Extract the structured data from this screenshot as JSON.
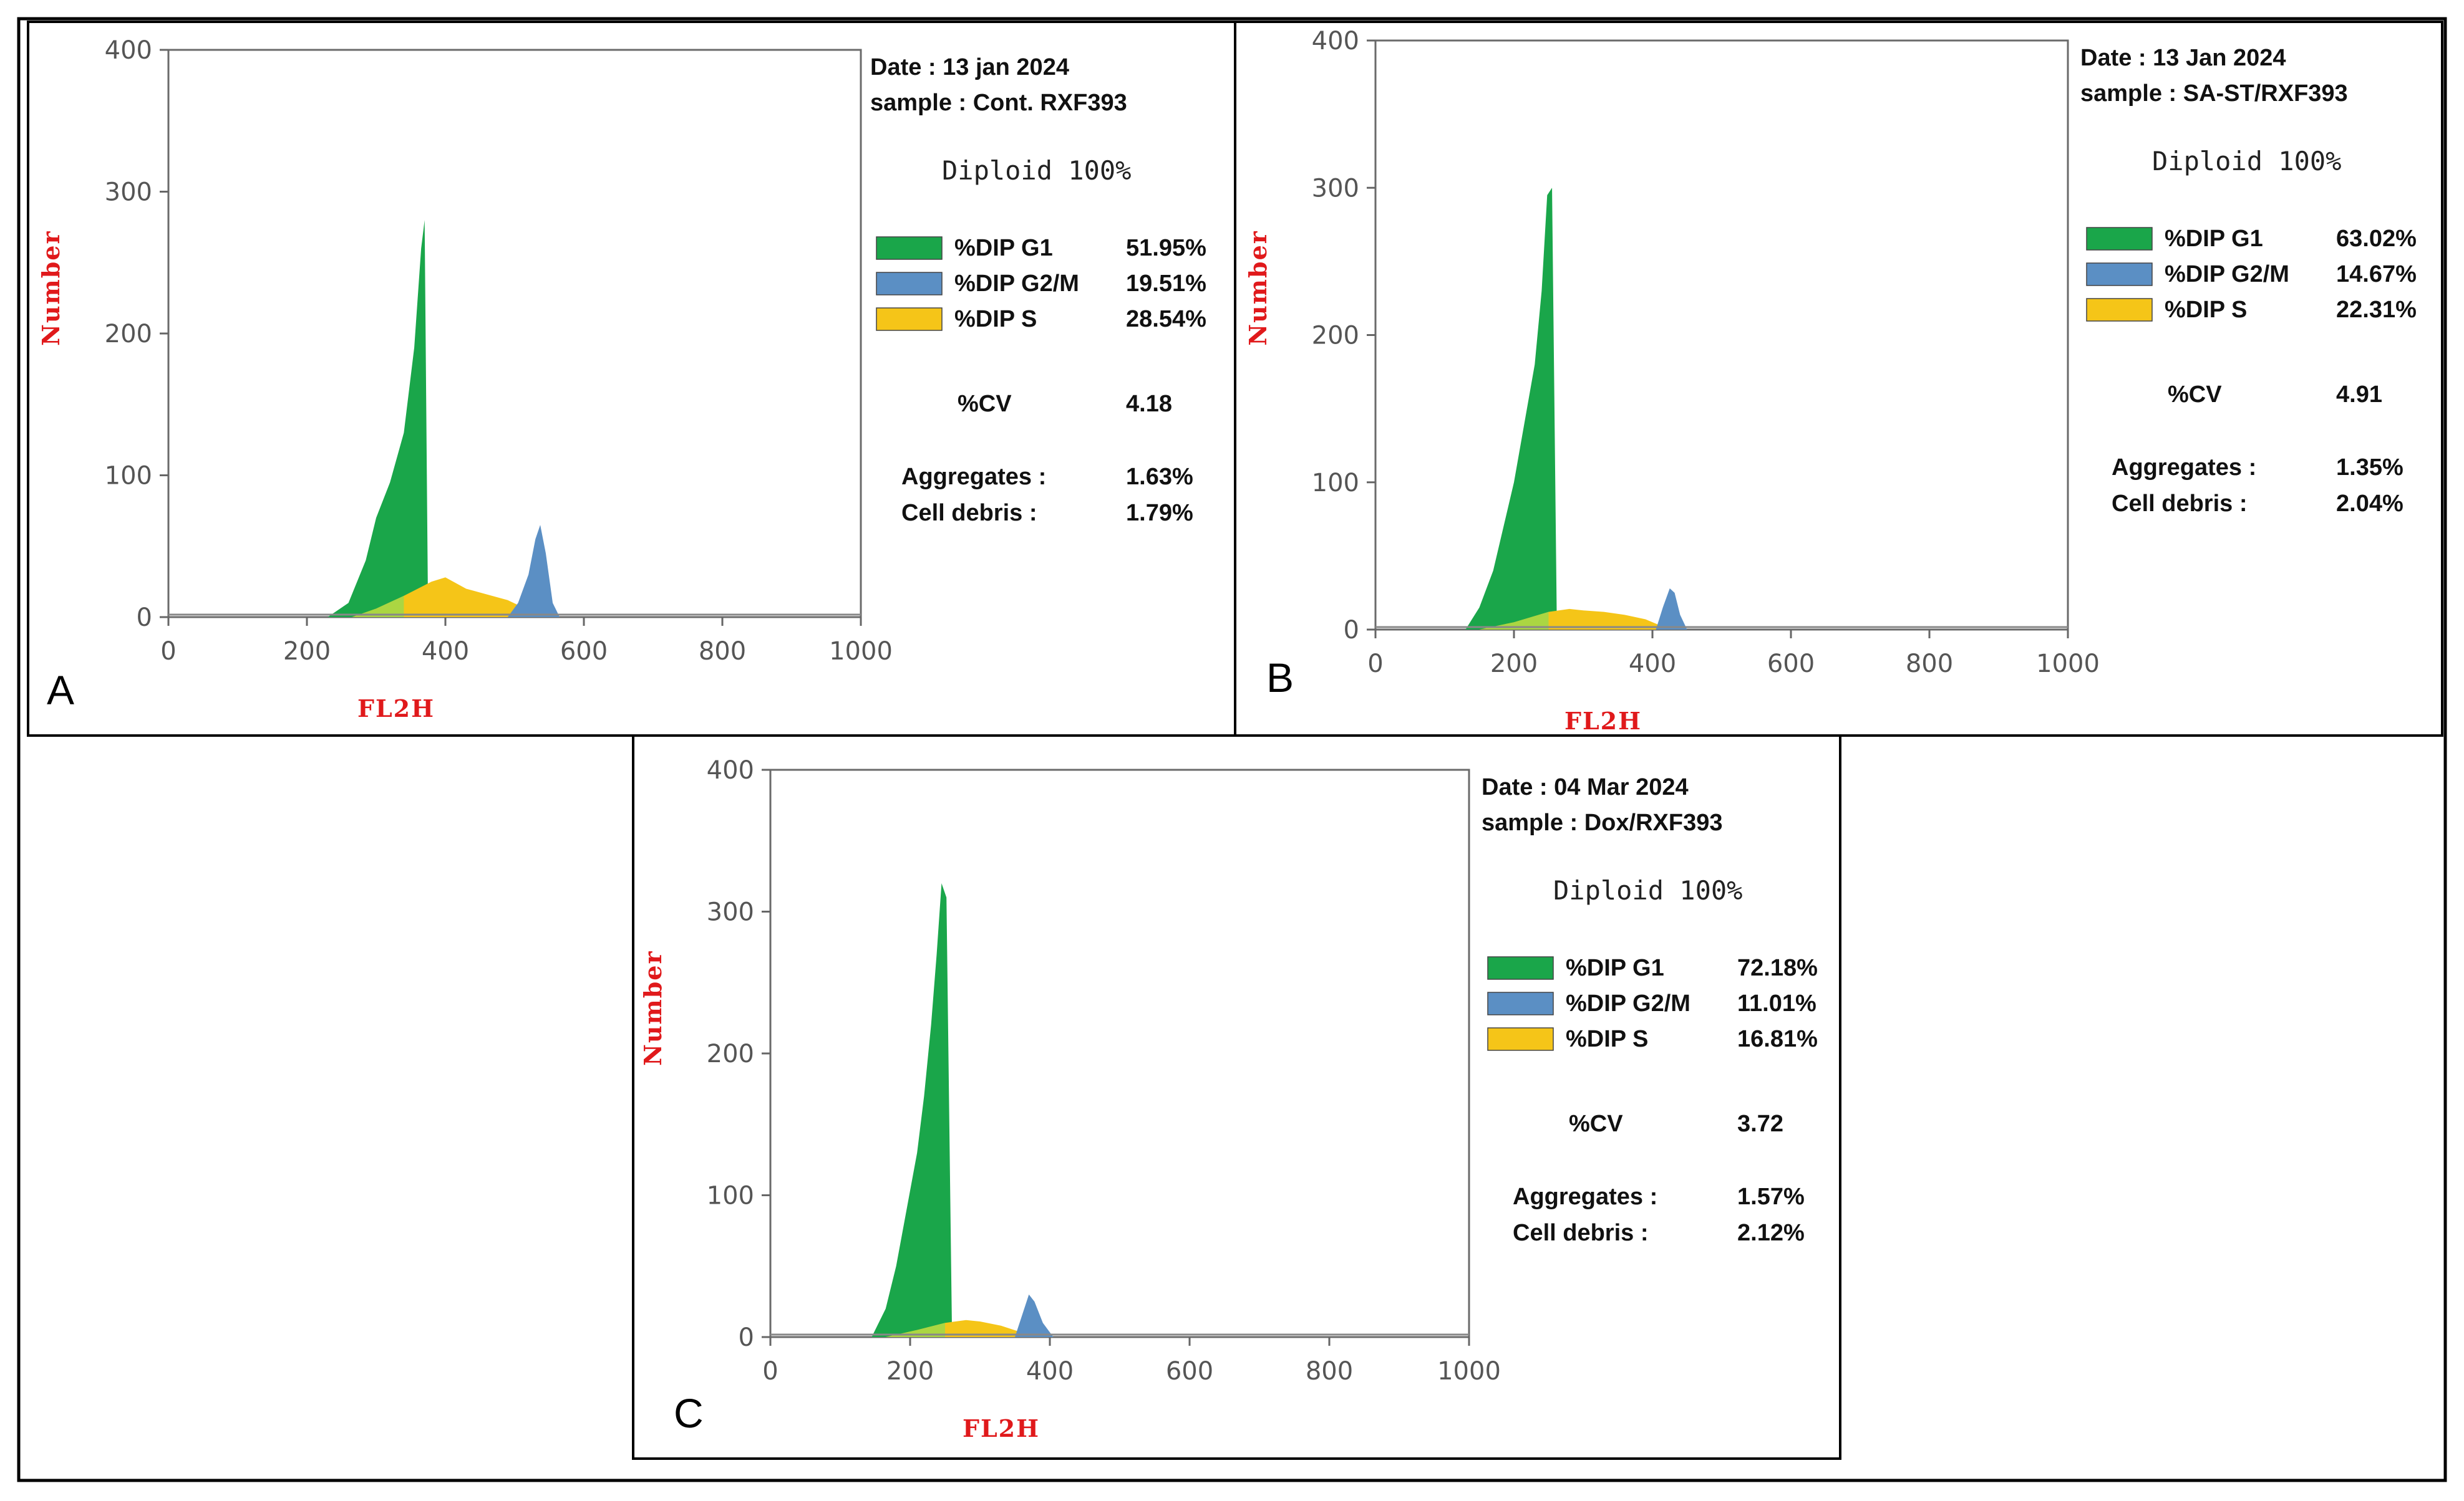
{
  "chart_data": [
    {
      "panel": "A",
      "type": "area",
      "date_label": "Date : 13 jan 2024",
      "sample_label": "sample : Cont. RXF393",
      "diploid_label": "Diploid 100%",
      "xlabel": "FL2H",
      "ylabel": "Number",
      "xlim": [
        0,
        1000
      ],
      "ylim": [
        0,
        400
      ],
      "xticks": [
        "0",
        "200",
        "400",
        "600",
        "800",
        "1000"
      ],
      "yticks": [
        "0",
        "100",
        "200",
        "300",
        "400"
      ],
      "legend": [
        {
          "name": "%DIP G1",
          "value": "51.95%",
          "color": "#1aa64a"
        },
        {
          "name": "%DIP G2/M",
          "value": "19.51%",
          "color": "#5b8fc4"
        },
        {
          "name": "%DIP S",
          "value": "28.54%",
          "color": "#f5c518"
        }
      ],
      "stats": [
        {
          "label": "%CV",
          "value": "4.18"
        },
        {
          "label": "Aggregates :",
          "value": "1.63%"
        },
        {
          "label": "Cell debris :",
          "value": "1.79%"
        }
      ],
      "g1": {
        "x": [
          230,
          260,
          285,
          300,
          320,
          340,
          355,
          365,
          370,
          375
        ],
        "y": [
          0,
          10,
          40,
          70,
          95,
          130,
          190,
          260,
          280,
          0
        ]
      },
      "g2m": {
        "x": [
          490,
          505,
          520,
          530,
          537,
          545,
          555,
          565
        ],
        "y": [
          0,
          10,
          30,
          55,
          65,
          45,
          10,
          0
        ]
      },
      "s": {
        "x": [
          265,
          300,
          340,
          380,
          400,
          430,
          460,
          490,
          520,
          545
        ],
        "y": [
          0,
          6,
          15,
          25,
          28,
          20,
          16,
          12,
          5,
          0
        ]
      }
    },
    {
      "panel": "B",
      "type": "area",
      "date_label": "Date : 13 Jan 2024",
      "sample_label": "sample : SA-ST/RXF393",
      "diploid_label": "Diploid 100%",
      "xlabel": "FL2H",
      "ylabel": "Number",
      "xlim": [
        0,
        1000
      ],
      "ylim": [
        0,
        400
      ],
      "xticks": [
        "0",
        "200",
        "400",
        "600",
        "800",
        "1000"
      ],
      "yticks": [
        "0",
        "100",
        "200",
        "300",
        "400"
      ],
      "legend": [
        {
          "name": "%DIP G1",
          "value": "63.02%",
          "color": "#1aa64a"
        },
        {
          "name": "%DIP G2/M",
          "value": "14.67%",
          "color": "#5b8fc4"
        },
        {
          "name": "%DIP S",
          "value": "22.31%",
          "color": "#f5c518"
        }
      ],
      "stats": [
        {
          "label": "%CV",
          "value": "4.91"
        },
        {
          "label": "Aggregates :",
          "value": "1.35%"
        },
        {
          "label": "Cell debris :",
          "value": "2.04%"
        }
      ],
      "g1": {
        "x": [
          130,
          150,
          170,
          185,
          200,
          215,
          230,
          240,
          248,
          255,
          262
        ],
        "y": [
          0,
          15,
          40,
          70,
          100,
          140,
          180,
          230,
          295,
          300,
          0
        ]
      },
      "g2m": {
        "x": [
          405,
          415,
          425,
          432,
          440,
          450
        ],
        "y": [
          0,
          15,
          28,
          25,
          10,
          0
        ]
      },
      "s": {
        "x": [
          150,
          200,
          250,
          280,
          300,
          330,
          360,
          390,
          410,
          430
        ],
        "y": [
          0,
          5,
          12,
          14,
          13,
          12,
          10,
          7,
          3,
          0
        ]
      }
    },
    {
      "panel": "C",
      "type": "area",
      "date_label": "Date : 04 Mar 2024",
      "sample_label": "sample : Dox/RXF393",
      "diploid_label": "Diploid 100%",
      "xlabel": "FL2H",
      "ylabel": "Number",
      "xlim": [
        0,
        1000
      ],
      "ylim": [
        0,
        400
      ],
      "xticks": [
        "0",
        "200",
        "400",
        "600",
        "800",
        "1000"
      ],
      "yticks": [
        "0",
        "100",
        "200",
        "300",
        "400"
      ],
      "legend": [
        {
          "name": "%DIP G1",
          "value": "72.18%",
          "color": "#1aa64a"
        },
        {
          "name": "%DIP G2/M",
          "value": "11.01%",
          "color": "#5b8fc4"
        },
        {
          "name": "%DIP S",
          "value": "16.81%",
          "color": "#f5c518"
        }
      ],
      "stats": [
        {
          "label": "%CV",
          "value": "3.72"
        },
        {
          "label": "Aggregates :",
          "value": "1.57%"
        },
        {
          "label": "Cell debris :",
          "value": "2.12%"
        }
      ],
      "g1": {
        "x": [
          145,
          165,
          180,
          195,
          210,
          220,
          230,
          238,
          245,
          252,
          260
        ],
        "y": [
          0,
          20,
          50,
          90,
          130,
          170,
          220,
          270,
          320,
          310,
          0
        ]
      },
      "g2m": {
        "x": [
          350,
          360,
          370,
          378,
          390,
          405
        ],
        "y": [
          0,
          15,
          30,
          25,
          10,
          0
        ]
      },
      "s": {
        "x": [
          165,
          210,
          250,
          280,
          300,
          330,
          355,
          375
        ],
        "y": [
          0,
          5,
          10,
          12,
          11,
          8,
          4,
          0
        ]
      }
    }
  ]
}
